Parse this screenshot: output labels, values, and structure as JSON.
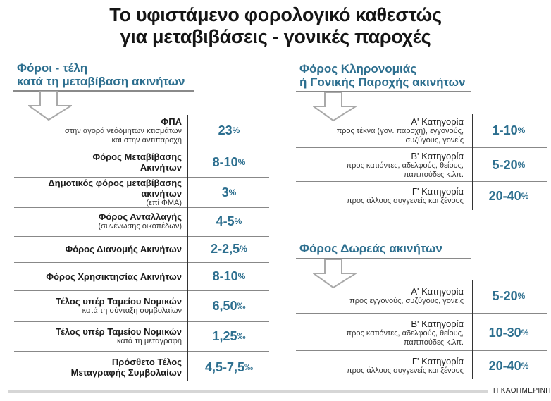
{
  "title": {
    "line1": "Το υφιστάμενο φορολογικό καθεστώς",
    "line2": "για μεταβιβάσεις - γονικές παροχές"
  },
  "left": {
    "title_line1": "Φόροι - τέλη",
    "title_line2": "κατά τη μεταβίβαση ακινήτων",
    "rows": [
      {
        "main": "ΦΠΑ",
        "sub": "στην αγορά νεόδμητων κτισμάτων|και στην αντιπαροχή",
        "value": "23",
        "unit": "%"
      },
      {
        "main": "Φόρος Μεταβίβασης|Ακινήτων",
        "sub": "",
        "value": "8-10",
        "unit": "%"
      },
      {
        "main": "Δημοτικός φόρος μεταβίβασης|ακινήτων",
        "sub": "(επί ΦΜΑ)",
        "value": "3",
        "unit": "%"
      },
      {
        "main": "Φόρος Ανταλλαγής",
        "sub": "(συνένωσης οικοπέδων)",
        "value": "4-5",
        "unit": "%"
      },
      {
        "main": "Φόρος Διανομής Ακινήτων",
        "sub": "",
        "value": "2-2,5",
        "unit": "%"
      },
      {
        "main": "Φόρος Χρησικτησίας Ακινήτων",
        "sub": "",
        "value": "8-10",
        "unit": "%"
      },
      {
        "main": "Τέλος υπέρ Ταμείου Νομικών",
        "sub": "κατά τη σύνταξη συμβολαίων",
        "value": "6,50",
        "unit": "‰"
      },
      {
        "main": "Τέλος υπέρ Ταμείου Νομικών",
        "sub": "κατά τη μεταγραφή",
        "value": "1,25",
        "unit": "‰"
      },
      {
        "main": "Πρόσθετο Τέλος|Μεταγραφής Συμβολαίων",
        "sub": "",
        "value": "4,5-7,5",
        "unit": "‰"
      }
    ]
  },
  "inheritance": {
    "title_line1": "Φόρος Κληρονομιάς",
    "title_line2": "ή Γονικής Παροχής ακινήτων",
    "rows": [
      {
        "main": "Α' Κατηγορία",
        "sub": "προς τέκνα (γον. παροχή), εγγονούς,|συζύγους, γονείς",
        "value": "1-10",
        "unit": "%"
      },
      {
        "main": "Β' Κατηγορία",
        "sub": "προς κατιόντες, αδελφούς, θείους,|παππούδες κ.λπ.",
        "value": "5-20",
        "unit": "%"
      },
      {
        "main": "Γ' Κατηγορία",
        "sub": "προς άλλους συγγενείς και ξένους",
        "value": "20-40",
        "unit": "%"
      }
    ]
  },
  "donation": {
    "title_line1": "Φόρος Δωρεάς ακινήτων",
    "rows": [
      {
        "main": "Α' Κατηγορία",
        "sub": "προς εγγονούς, συζύγους, γονείς",
        "value": "5-20",
        "unit": "%"
      },
      {
        "main": "Β' Κατηγορία",
        "sub": "προς κατιόντες, αδελφούς, θείους,|παππούδες κ.λπ.",
        "value": "10-30",
        "unit": "%"
      },
      {
        "main": "Γ' Κατηγορία",
        "sub": "προς άλλους συγγενείς και ξένους",
        "value": "20-40",
        "unit": "%"
      }
    ]
  },
  "credit": "Η ΚΑΘΗΜΕΡΙΝΗ",
  "colors": {
    "accent": "#2d6f8f",
    "arrow": "#a9a9a9"
  }
}
